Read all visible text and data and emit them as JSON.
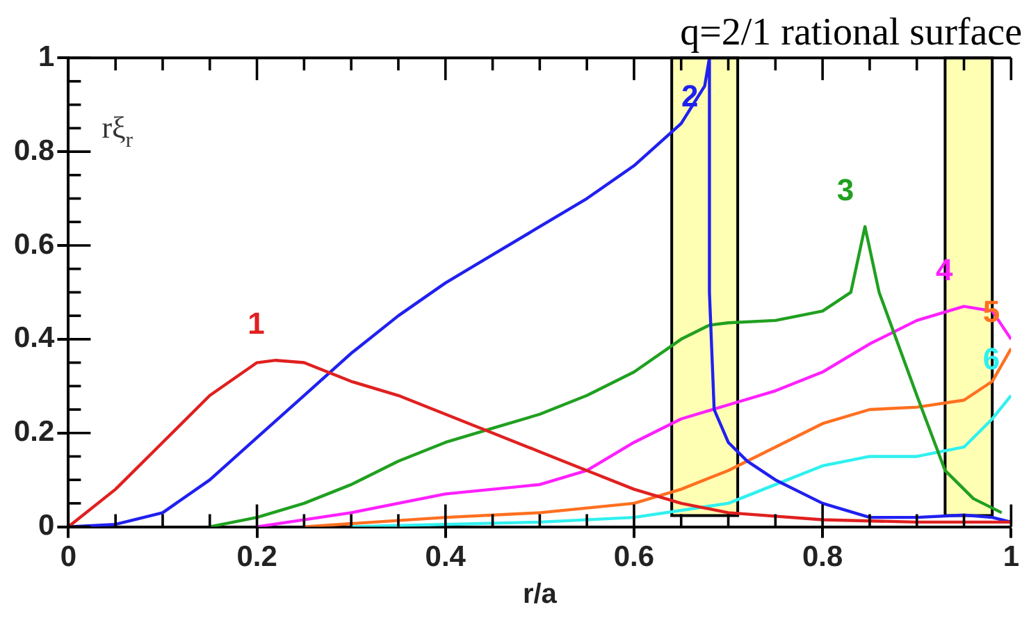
{
  "chart_data": {
    "type": "line",
    "title": "q=2/1 rational surface",
    "xlabel": "r/a",
    "ylabel": "rξ$_{r}$",
    "xlim": [
      0,
      1
    ],
    "ylim": [
      0,
      1
    ],
    "xticks": [
      0,
      0.2,
      0.4,
      0.6,
      0.8,
      1
    ],
    "yticks": [
      0,
      0.2,
      0.4,
      0.6,
      0.8,
      1
    ],
    "grid": false,
    "legend": false,
    "marker": "none",
    "line_style": "solid",
    "bands": [
      {
        "axis": "x",
        "from": 0.64,
        "to": 0.71,
        "color": "#ffffb4"
      },
      {
        "axis": "x",
        "from": 0.93,
        "to": 0.98,
        "color": "#ffffb4"
      }
    ],
    "series": [
      {
        "name": "1",
        "color": "#e02020",
        "x": [
          0,
          0.05,
          0.1,
          0.15,
          0.2,
          0.22,
          0.25,
          0.3,
          0.35,
          0.4,
          0.45,
          0.5,
          0.55,
          0.6,
          0.65,
          0.7,
          0.8,
          0.9,
          1
        ],
        "values": [
          0,
          0.08,
          0.18,
          0.28,
          0.35,
          0.355,
          0.35,
          0.31,
          0.28,
          0.24,
          0.2,
          0.16,
          0.12,
          0.08,
          0.05,
          0.03,
          0.015,
          0.01,
          0.01
        ]
      },
      {
        "name": "2",
        "color": "#2020f0",
        "x": [
          0,
          0.05,
          0.1,
          0.15,
          0.2,
          0.25,
          0.3,
          0.35,
          0.4,
          0.45,
          0.5,
          0.55,
          0.6,
          0.65,
          0.675,
          0.68,
          0.68,
          0.685,
          0.7,
          0.72,
          0.75,
          0.8,
          0.85,
          0.9,
          0.95,
          0.98,
          1
        ],
        "values": [
          0,
          0.005,
          0.03,
          0.1,
          0.19,
          0.28,
          0.37,
          0.45,
          0.52,
          0.58,
          0.64,
          0.7,
          0.77,
          0.86,
          0.94,
          1,
          0.5,
          0.25,
          0.18,
          0.14,
          0.1,
          0.05,
          0.02,
          0.02,
          0.025,
          0.02,
          0.01
        ]
      },
      {
        "name": "3",
        "color": "#20a020",
        "x": [
          0.15,
          0.2,
          0.25,
          0.3,
          0.35,
          0.4,
          0.45,
          0.5,
          0.55,
          0.6,
          0.65,
          0.68,
          0.7,
          0.75,
          0.8,
          0.83,
          0.845,
          0.86,
          0.9,
          0.93,
          0.96,
          0.99
        ],
        "values": [
          0,
          0.02,
          0.05,
          0.09,
          0.14,
          0.18,
          0.21,
          0.24,
          0.28,
          0.33,
          0.4,
          0.43,
          0.435,
          0.44,
          0.46,
          0.5,
          0.64,
          0.5,
          0.28,
          0.12,
          0.06,
          0.03
        ]
      },
      {
        "name": "4",
        "color": "#ff20ff",
        "x": [
          0.2,
          0.3,
          0.4,
          0.5,
          0.55,
          0.6,
          0.65,
          0.7,
          0.75,
          0.8,
          0.85,
          0.9,
          0.95,
          0.98,
          1
        ],
        "values": [
          0,
          0.03,
          0.07,
          0.09,
          0.12,
          0.18,
          0.23,
          0.26,
          0.29,
          0.33,
          0.39,
          0.44,
          0.47,
          0.46,
          0.4
        ]
      },
      {
        "name": "5",
        "color": "#ff7020",
        "x": [
          0.25,
          0.4,
          0.5,
          0.6,
          0.65,
          0.7,
          0.75,
          0.8,
          0.85,
          0.9,
          0.95,
          0.98,
          1
        ],
        "values": [
          0,
          0.02,
          0.03,
          0.05,
          0.08,
          0.12,
          0.17,
          0.22,
          0.25,
          0.255,
          0.27,
          0.31,
          0.38
        ]
      },
      {
        "name": "6",
        "color": "#30f0f0",
        "x": [
          0.3,
          0.5,
          0.6,
          0.7,
          0.75,
          0.8,
          0.85,
          0.9,
          0.95,
          0.98,
          1
        ],
        "values": [
          0,
          0.01,
          0.02,
          0.05,
          0.09,
          0.13,
          0.15,
          0.15,
          0.17,
          0.23,
          0.28
        ]
      }
    ]
  }
}
